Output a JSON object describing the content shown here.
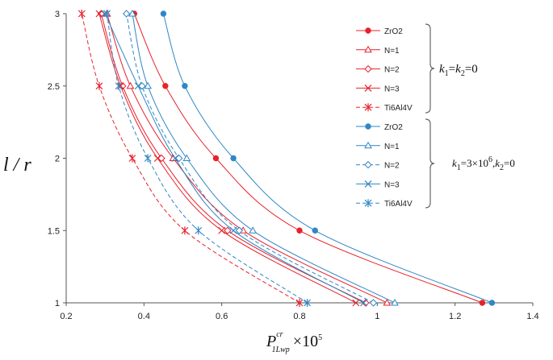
{
  "chart_data": {
    "type": "line",
    "title": "",
    "xlim": [
      0.2,
      1.4
    ],
    "ylim": [
      1,
      3
    ],
    "x_ticks": [
      0.2,
      0.4,
      0.6,
      0.8,
      1.0,
      1.2,
      1.4
    ],
    "x_tick_labels": [
      "0.2",
      "0.4",
      "0.6",
      "0.8",
      "1",
      "1.2",
      "1.4"
    ],
    "y_ticks": [
      1,
      1.5,
      2,
      2.5,
      3
    ],
    "y_tick_labels": [
      "1",
      "1.5",
      "2",
      "2.5",
      "3"
    ],
    "ylabel": "l / r",
    "xlabel": {
      "base": "P",
      "sup": "cr",
      "sub": "1Lwp",
      "suffix": "×10",
      "exp": "5"
    },
    "grid": false,
    "legend_position": "right",
    "colors": {
      "red": "#e8212b",
      "blue": "#2f87c6"
    },
    "y_values": [
      1,
      1.5,
      2,
      2.5,
      3
    ],
    "series": [
      {
        "name": "ZrO2",
        "color": "#e8212b",
        "dash": "solid",
        "marker": "filled-circle",
        "x": [
          1.27,
          0.8,
          0.585,
          0.455,
          0.375
        ]
      },
      {
        "name": "N=1",
        "color": "#e8212b",
        "dash": "solid",
        "marker": "triangle",
        "x": [
          1.025,
          0.655,
          0.475,
          0.365,
          0.305
        ]
      },
      {
        "name": "N=2",
        "color": "#e8212b",
        "dash": "solid",
        "marker": "diamond",
        "x": [
          0.97,
          0.615,
          0.445,
          0.345,
          0.29
        ]
      },
      {
        "name": "N=3",
        "color": "#e8212b",
        "dash": "solid",
        "marker": "x",
        "x": [
          0.945,
          0.6,
          0.435,
          0.34,
          0.285
        ]
      },
      {
        "name": "Ti6Al4V",
        "color": "#e8212b",
        "dash": "dashed",
        "marker": "asterisk",
        "x": [
          0.8,
          0.505,
          0.37,
          0.285,
          0.24
        ]
      },
      {
        "name": "ZrO2",
        "color": "#2f87c6",
        "dash": "solid",
        "marker": "filled-circle",
        "x": [
          1.295,
          0.84,
          0.63,
          0.505,
          0.45
        ]
      },
      {
        "name": "N=1",
        "color": "#2f87c6",
        "dash": "solid",
        "marker": "triangle",
        "x": [
          1.045,
          0.68,
          0.51,
          0.41,
          0.37
        ]
      },
      {
        "name": "N=2",
        "color": "#2f87c6",
        "dash": "dashed",
        "marker": "diamond",
        "x": [
          0.99,
          0.645,
          0.49,
          0.395,
          0.355
        ]
      },
      {
        "name": "N=3",
        "color": "#2f87c6",
        "dash": "solid",
        "marker": "x",
        "x": [
          0.965,
          0.63,
          0.48,
          0.385,
          0.3
        ]
      },
      {
        "name": "Ti6Al4V",
        "color": "#2f87c6",
        "dash": "dashed",
        "marker": "asterisk",
        "x": [
          0.82,
          0.54,
          0.41,
          0.335,
          0.305
        ]
      }
    ],
    "annotations": [
      {
        "group": "red",
        "k1": "k",
        "s1": "1",
        "eq1": "=",
        "k2": "k",
        "s2": "2",
        "rest": "=0"
      },
      {
        "group": "blue",
        "k1": "k",
        "s1": "1",
        "eq1": "=3×10",
        "exp": "6",
        "comma": ",",
        "k2": "k",
        "s2": "2",
        "rest": "=0"
      }
    ]
  }
}
